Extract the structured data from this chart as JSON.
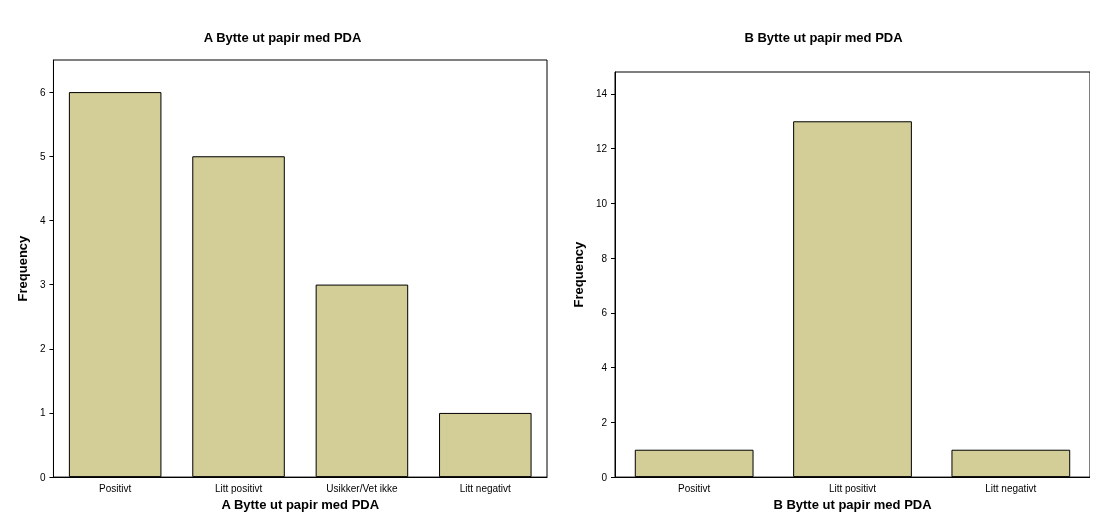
{
  "chart_data": [
    {
      "type": "bar",
      "title": "A Bytte ut papir med PDA",
      "xlabel": "A Bytte ut papir med PDA",
      "ylabel": "Frequency",
      "categories": [
        "Positivt",
        "Litt positivt",
        "Usikker/Vet ikke",
        "Litt negativt"
      ],
      "values": [
        6,
        5,
        3,
        1
      ],
      "color": "#d3cd98",
      "ylim": [
        0,
        6.5
      ],
      "yticks": [
        0,
        1,
        2,
        3,
        4,
        5,
        6
      ],
      "grid": false
    },
    {
      "type": "bar",
      "title": "B Bytte ut papir med PDA",
      "xlabel": "B Bytte ut papir med PDA",
      "ylabel": "Frequency",
      "categories": [
        "Positivt",
        "Litt positivt",
        "Litt negativt"
      ],
      "values": [
        1,
        13,
        1
      ],
      "color": "#d3cd98",
      "ylim": [
        0,
        14.8
      ],
      "yticks": [
        0,
        2,
        4,
        6,
        8,
        10,
        12,
        14
      ],
      "grid": false
    }
  ]
}
